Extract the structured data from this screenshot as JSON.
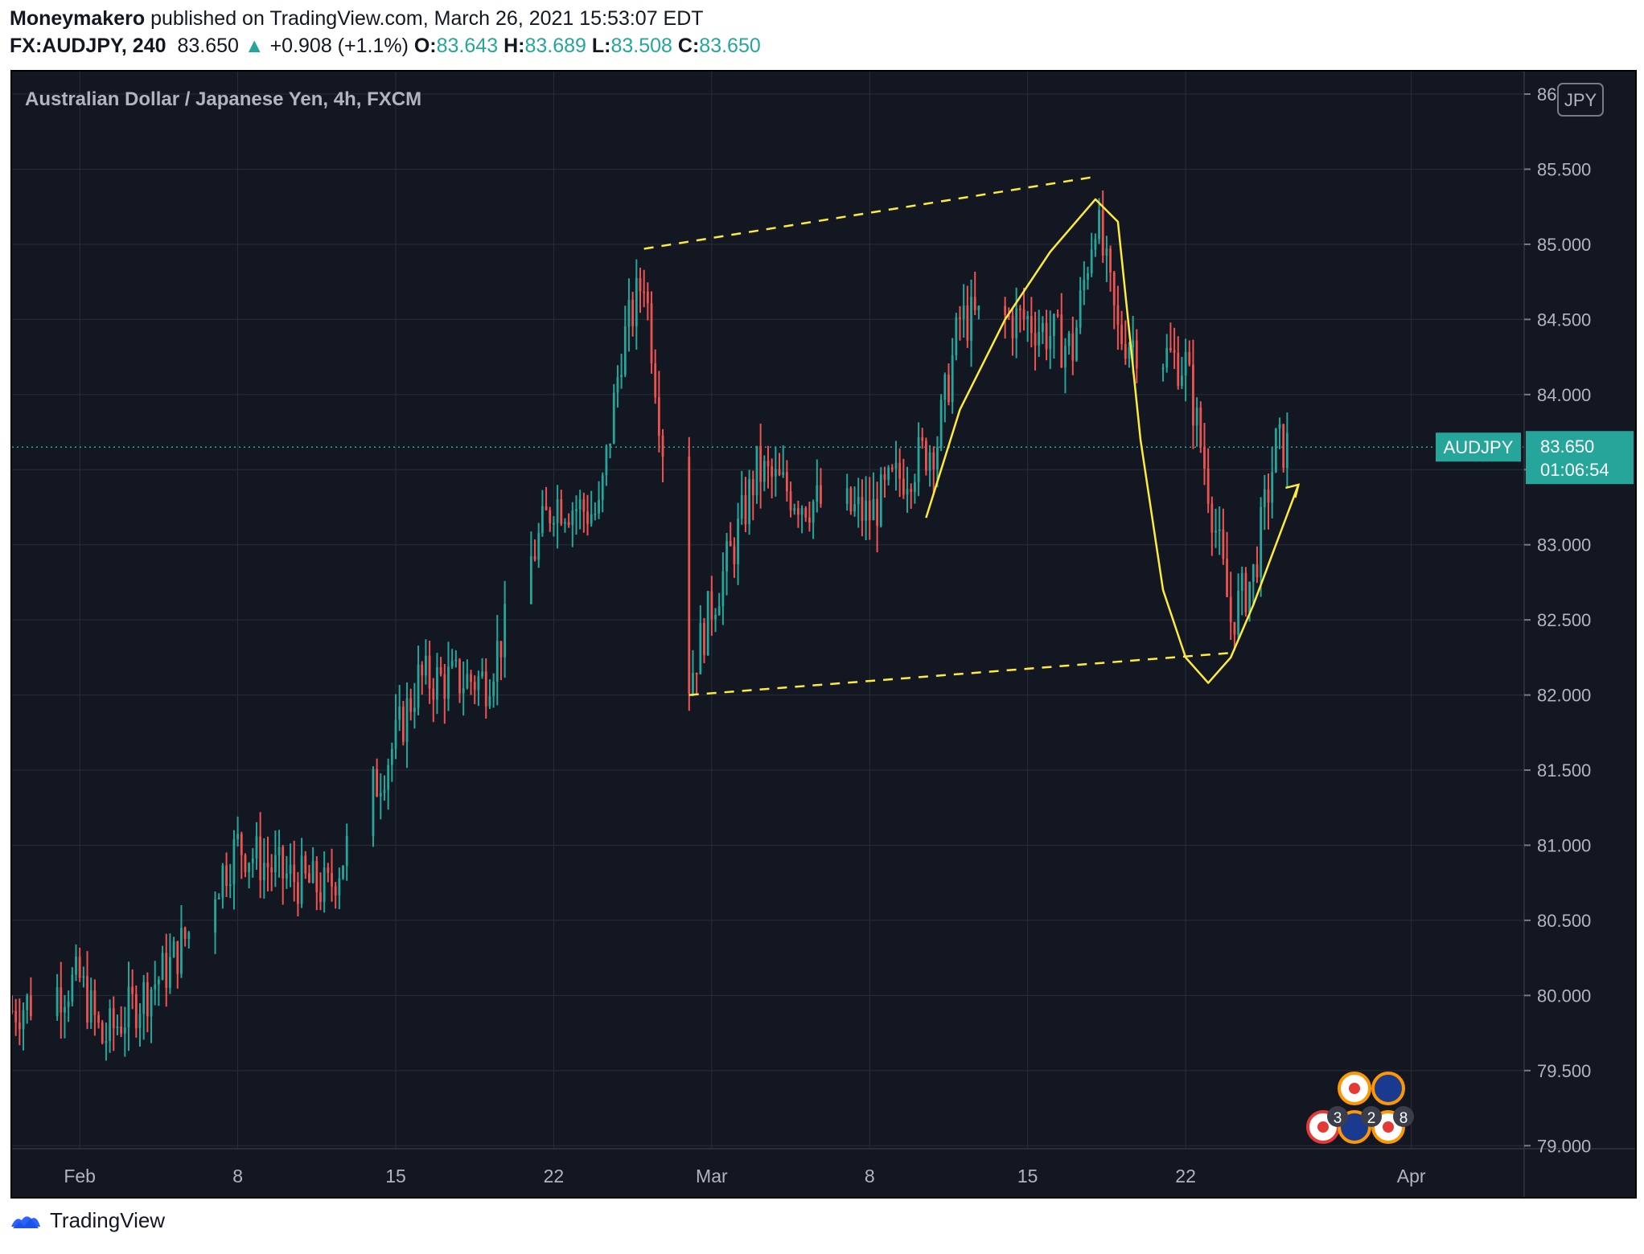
{
  "header": {
    "author": "Moneymakero",
    "published": "published on TradingView.com, March 26, 2021 15:53:07 EDT",
    "symbol": "FX:AUDJPY, 240",
    "last": "83.650",
    "change": "+0.908 (+1.1%)",
    "o_label": "O:",
    "o_value": "83.643",
    "h_label": "H:",
    "h_value": "83.689",
    "l_label": "L:",
    "l_value": "83.508",
    "c_label": "C:",
    "c_value": "83.650"
  },
  "legend": {
    "title": "Australian Dollar / Japanese Yen, 4h, FXCM"
  },
  "currency_badge": "JPY",
  "price_badge": {
    "symbol": "AUDJPY",
    "price": "83.650",
    "countdown": "01:06:54"
  },
  "event_badges": {
    "a": "3",
    "b": "2",
    "c": "8"
  },
  "footer": {
    "brand": "TradingView"
  },
  "colors": {
    "background": "#131722",
    "up": "#26a69a",
    "down": "#ef5350",
    "drawings": "#ffeb3b",
    "grid": "#2a2e39",
    "axis_text": "#b2b5be"
  },
  "chart_data": {
    "type": "candlestick",
    "title": "Australian Dollar / Japanese Yen, 4h, FXCM",
    "ylabel": "JPY",
    "ylim": [
      78.98,
      86.15
    ],
    "y_ticks": [
      "79.000",
      "79.500",
      "80.000",
      "80.500",
      "81.000",
      "81.500",
      "82.000",
      "82.500",
      "83.000",
      "83.500",
      "84.000",
      "84.500",
      "85.000",
      "85.500",
      "86.000"
    ],
    "x_ticks": [
      "Feb",
      "8",
      "15",
      "22",
      "Mar",
      "8",
      "15",
      "22",
      "Apr"
    ],
    "x_tick_dates": [
      "2021-02-01",
      "2021-02-08",
      "2021-02-15",
      "2021-02-22",
      "2021-03-01",
      "2021-03-08",
      "2021-03-15",
      "2021-03-22",
      "2021-04-01"
    ],
    "x_range": [
      "2021-01-29",
      "2021-04-06"
    ],
    "last_price": 83.65,
    "price_anchors": [
      {
        "date": "2021-01-29",
        "close": 79.9
      },
      {
        "date": "2021-02-01",
        "close": 80.1
      },
      {
        "date": "2021-02-02",
        "close": 79.7
      },
      {
        "date": "2021-02-05",
        "close": 80.2
      },
      {
        "date": "2021-02-08",
        "close": 81.0
      },
      {
        "date": "2021-02-10",
        "close": 80.8
      },
      {
        "date": "2021-02-12",
        "close": 80.7
      },
      {
        "date": "2021-02-15",
        "close": 81.7
      },
      {
        "date": "2021-02-16",
        "close": 82.1
      },
      {
        "date": "2021-02-18",
        "close": 82.1
      },
      {
        "date": "2021-02-19",
        "close": 82.1
      },
      {
        "date": "2021-02-22",
        "close": 83.3
      },
      {
        "date": "2021-02-24",
        "close": 83.2
      },
      {
        "date": "2021-02-25",
        "close": 84.3
      },
      {
        "date": "2021-02-26",
        "close": 84.8
      },
      {
        "date": "2021-02-28",
        "close": 82.1
      },
      {
        "date": "2021-03-01",
        "close": 82.6
      },
      {
        "date": "2021-03-02",
        "close": 83.0
      },
      {
        "date": "2021-03-03",
        "close": 83.5
      },
      {
        "date": "2021-03-05",
        "close": 83.3
      },
      {
        "date": "2021-03-08",
        "close": 83.2
      },
      {
        "date": "2021-03-09",
        "close": 83.4
      },
      {
        "date": "2021-03-11",
        "close": 83.7
      },
      {
        "date": "2021-03-12",
        "close": 84.5
      },
      {
        "date": "2021-03-15",
        "close": 84.5
      },
      {
        "date": "2021-03-16",
        "close": 84.4
      },
      {
        "date": "2021-03-17",
        "close": 84.3
      },
      {
        "date": "2021-03-18",
        "close": 85.2
      },
      {
        "date": "2021-03-19",
        "close": 84.4
      },
      {
        "date": "2021-03-22",
        "close": 84.2
      },
      {
        "date": "2021-03-23",
        "close": 83.4
      },
      {
        "date": "2021-03-24",
        "close": 82.5
      },
      {
        "date": "2021-03-25",
        "close": 82.8
      },
      {
        "date": "2021-03-26",
        "close": 83.65
      }
    ],
    "trend_lines": [
      {
        "from": [
          "2021-02-26",
          84.97
        ],
        "to": [
          "2021-03-18",
          85.45
        ]
      },
      {
        "from": [
          "2021-02-28",
          82.0
        ],
        "to": [
          "2021-03-24",
          82.28
        ]
      }
    ]
  }
}
